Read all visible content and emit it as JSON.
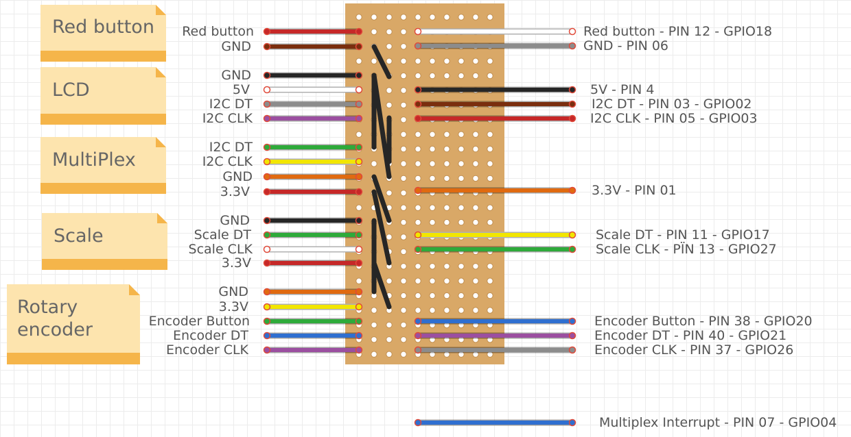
{
  "colors": {
    "board": "#d9a867",
    "note": "#fde4ae",
    "note_band": "#f5b54a"
  },
  "notes": [
    {
      "id": "red-button",
      "lines": [
        "Red button"
      ]
    },
    {
      "id": "lcd",
      "lines": [
        "LCD"
      ]
    },
    {
      "id": "multiplex",
      "lines": [
        "MultiPlex"
      ]
    },
    {
      "id": "scale",
      "lines": [
        "Scale"
      ]
    },
    {
      "id": "rotary-encoder",
      "lines": [
        "Rotary",
        "encoder"
      ]
    }
  ],
  "left_wires": [
    {
      "label": "Red button",
      "color": "#c62828"
    },
    {
      "label": "GND",
      "color": "#7a2e0e"
    },
    {
      "label": "GND",
      "color": "#262626"
    },
    {
      "label": "5V",
      "color": "#ffffff"
    },
    {
      "label": "I2C DT",
      "color": "#8c8c8c"
    },
    {
      "label": "I2C CLK",
      "color": "#9b4fa0"
    },
    {
      "label": "I2C DT",
      "color": "#2eaa3a"
    },
    {
      "label": "I2C CLK",
      "color": "#f2e600"
    },
    {
      "label": "GND",
      "color": "#e06a10"
    },
    {
      "label": "3.3V",
      "color": "#c62828"
    },
    {
      "label": "GND",
      "color": "#262626"
    },
    {
      "label": "Scale DT",
      "color": "#2eaa3a"
    },
    {
      "label": "Scale CLK",
      "color": "#ffffff"
    },
    {
      "label": "3.3V",
      "color": "#c62828"
    },
    {
      "label": "GND",
      "color": "#e06a10"
    },
    {
      "label": "3.3V",
      "color": "#f2e600"
    },
    {
      "label": "Encoder Button",
      "color": "#2eaa3a"
    },
    {
      "label": "Encoder DT",
      "color": "#2f6fd0"
    },
    {
      "label": "Encoder CLK",
      "color": "#9b4fa0"
    }
  ],
  "right_wires": [
    {
      "label": "Red button - PIN 12 - GPIO18",
      "color": "#ffffff"
    },
    {
      "label": "GND - PIN 06",
      "color": "#8c8c8c"
    },
    {
      "label": "5V - PIN 4",
      "color": "#262626"
    },
    {
      "label": "I2C DT - PIN 03 - GPIO02",
      "color": "#7a2e0e"
    },
    {
      "label": "I2C CLK - PIN 05 - GPIO03",
      "color": "#c62828"
    },
    {
      "label": "3.3V - PIN 01",
      "color": "#e06a10"
    },
    {
      "label": "Scale DT - PIN 11 - GPIO17",
      "color": "#f2e600"
    },
    {
      "label": "Scale CLK - PÏN 13 - GPIO27",
      "color": "#2eaa3a"
    },
    {
      "label": "Encoder Button - PIN 38 - GPIO20",
      "color": "#2f6fd0"
    },
    {
      "label": "Encoder DT - PIN 40 - GPIO21",
      "color": "#9b4fa0"
    },
    {
      "label": "Encoder CLK - PIN 37 - GPIO26",
      "color": "#8c8c8c"
    },
    {
      "label": "Multiplex Interrupt - PIN 07 - GPIO04",
      "color": "#2f6fd0"
    }
  ]
}
